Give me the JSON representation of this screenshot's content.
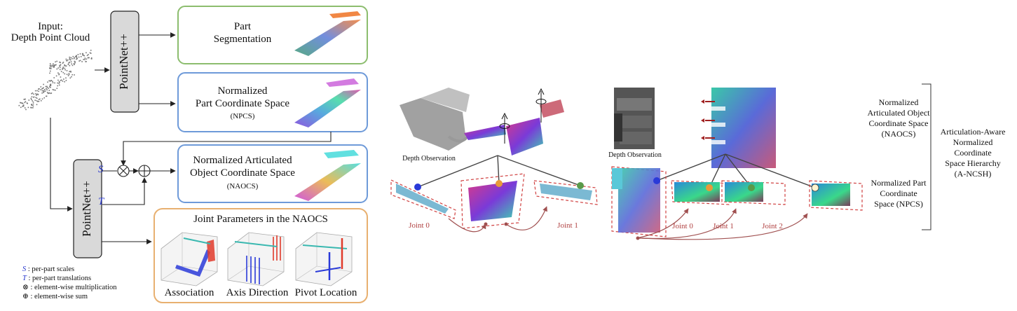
{
  "input": {
    "line1": "Input:",
    "line2": "Depth Point Cloud"
  },
  "network": {
    "top": "PointNet++",
    "bottom": "PointNet++"
  },
  "boxes": {
    "segmentation": {
      "line1": "Part",
      "line2": "Segmentation",
      "color": "#8cbd6e"
    },
    "npcs": {
      "line1": "Normalized",
      "line2": "Part Coordinate Space",
      "line3": "(NPCS)",
      "color": "#6e9ad9"
    },
    "naocs": {
      "line1": "Normalized Articulated",
      "line2": "Object Coordinate Space",
      "line3": "(NAOCS)",
      "color": "#6e9ad9"
    },
    "joints": {
      "title": "Joint Parameters in the NAOCS",
      "panels": [
        "Association",
        "Axis Direction",
        "Pivot Location"
      ],
      "color": "#e8b070"
    }
  },
  "symbols": {
    "s": "S",
    "t": "T",
    "times": "⊗",
    "plus": "⊕"
  },
  "legend": [
    {
      "sym": "S",
      "text": " : per-part scales"
    },
    {
      "sym": "T",
      "text": " : per-part translations"
    },
    {
      "sym": "⊗",
      "text": " : element-wise multiplication"
    },
    {
      "sym": "⊕",
      "text": " : element-wise sum"
    }
  ],
  "glasses": {
    "depth_label": "Depth Observation",
    "joint0": "Joint 0",
    "joint1": "Joint 1"
  },
  "cabinet": {
    "depth_label": "Depth Observation",
    "joint0": "Joint 0",
    "joint1": "Joint 1",
    "joint2": "Joint 2"
  },
  "hierarchy": {
    "naocs": {
      "line1": "Normalized",
      "line2": "Articulated Object",
      "line3": "Coordinate Space",
      "line4": "(NAOCS)"
    },
    "npcs": {
      "line1": "Normalized Part",
      "line2": "Coordinate",
      "line3": "Space (NPCS)"
    },
    "ancsh": {
      "line1": "Articulation-Aware",
      "line2": "Normalized",
      "line3": "Coordinate",
      "line4": "Space Hierarchy",
      "line5": "(A-NCSH)"
    }
  }
}
